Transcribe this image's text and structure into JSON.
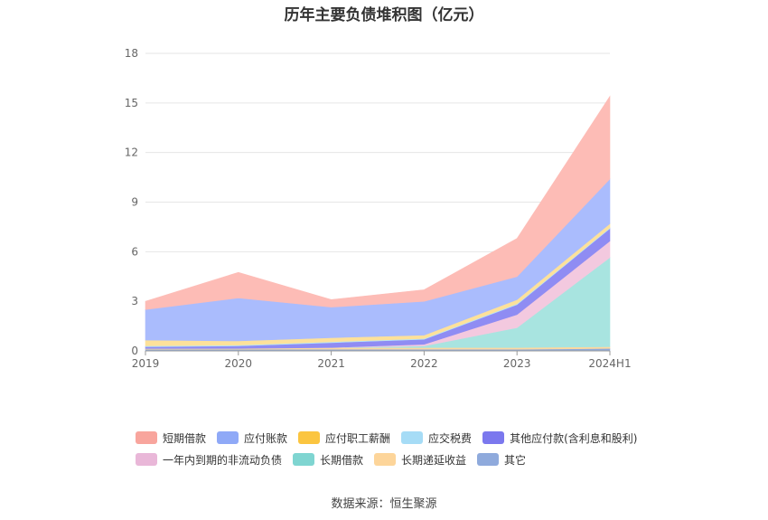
{
  "chart_data": {
    "type": "area",
    "stacked": true,
    "title": "历年主要负债堆积图（亿元）",
    "categories": [
      "2019",
      "2020",
      "2021",
      "2022",
      "2023",
      "2024H1"
    ],
    "ylim": [
      0,
      18
    ],
    "yticks": [
      0,
      3,
      6,
      9,
      12,
      15,
      18
    ],
    "grid": true,
    "legend_position": "bottom",
    "series": [
      {
        "name": "其它",
        "color": "#8faadc",
        "values": [
          0.1,
          0.1,
          0.1,
          0.1,
          0.1,
          0.15
        ]
      },
      {
        "name": "长期递延收益",
        "color": "#fdd8a0",
        "values": [
          0.05,
          0.05,
          0.1,
          0.1,
          0.1,
          0.1
        ]
      },
      {
        "name": "长期借款",
        "color": "#a8e4e0",
        "values": [
          0,
          0,
          0,
          0.1,
          1.2,
          5.4
        ]
      },
      {
        "name": "一年内到期的非流动负债",
        "color": "#f3c9df",
        "values": [
          0,
          0,
          0,
          0.1,
          0.8,
          1.0
        ]
      },
      {
        "name": "其他应付款(含利息和股利)",
        "color": "#8f8cf3",
        "values": [
          0.1,
          0.15,
          0.3,
          0.3,
          0.6,
          0.75
        ]
      },
      {
        "name": "应交税费",
        "color": "#b5e3f8",
        "values": [
          0.05,
          0.05,
          0.05,
          0.05,
          0.05,
          0.05
        ]
      },
      {
        "name": "应付职工薪酬",
        "color": "#fde19a",
        "values": [
          0.35,
          0.25,
          0.25,
          0.2,
          0.25,
          0.25
        ]
      },
      {
        "name": "应付账款",
        "color": "#aabcfd",
        "values": [
          1.85,
          2.6,
          1.85,
          2.05,
          1.4,
          2.7
        ]
      },
      {
        "name": "短期借款",
        "color": "#fdbcb6",
        "values": [
          0.5,
          1.55,
          0.45,
          0.7,
          2.3,
          5.0
        ]
      }
    ],
    "legend": [
      {
        "name": "短期借款",
        "color": "#f8a59d"
      },
      {
        "name": "应付账款",
        "color": "#8fa9f7"
      },
      {
        "name": "应付职工薪酬",
        "color": "#fbc540"
      },
      {
        "name": "应交税费",
        "color": "#a6dcf6"
      },
      {
        "name": "其他应付款(含利息和股利)",
        "color": "#7b78ee"
      },
      {
        "name": "一年内到期的非流动负债",
        "color": "#e9b7d8"
      },
      {
        "name": "长期借款",
        "color": "#7fd5d1"
      },
      {
        "name": "长期递延收益",
        "color": "#fdd59a"
      },
      {
        "name": "其它",
        "color": "#8faadc"
      }
    ]
  },
  "source_text": "数据来源：恒生聚源"
}
